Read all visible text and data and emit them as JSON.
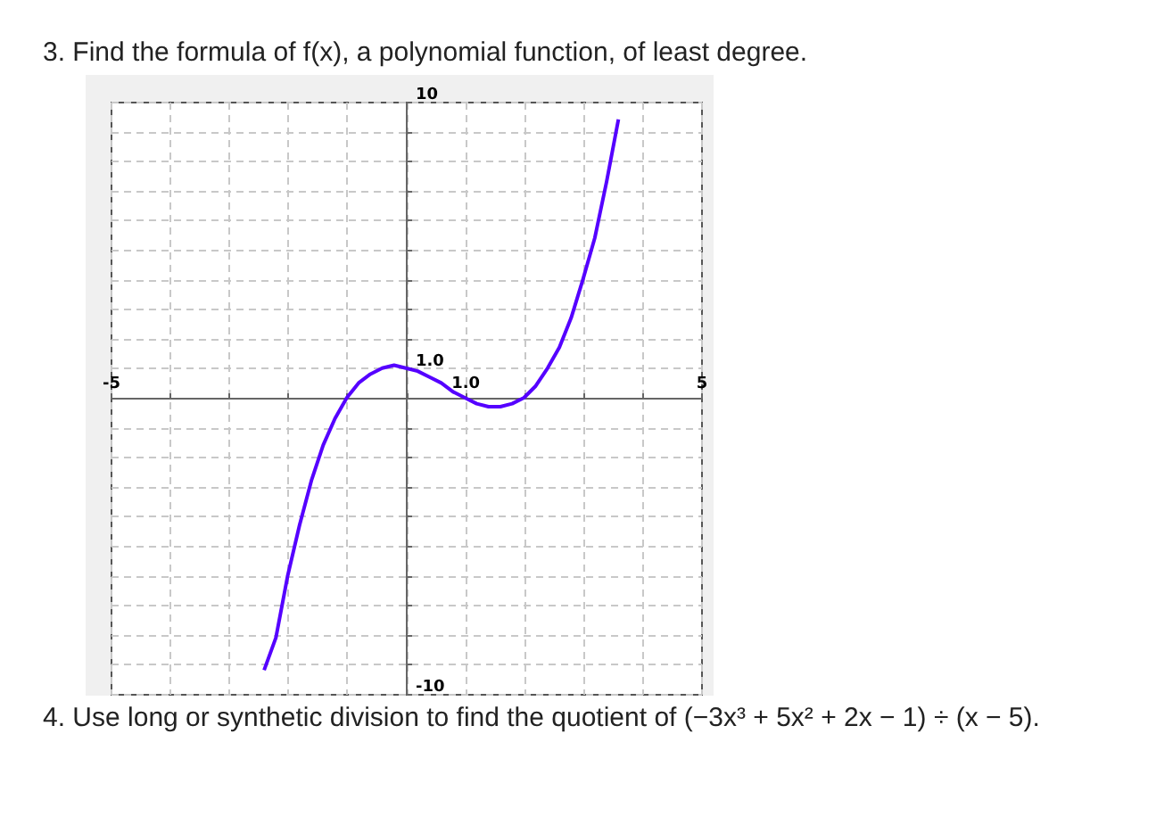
{
  "chart_data": {
    "type": "line",
    "title": "3. Find the formula of f(x), a polynomial function, of least degree.",
    "annotations": [
      "4. Use long or synthetic division to find the quotient of (−3x³ + 5x² + 2x − 1) ÷ (x − 5)."
    ],
    "xlim": [
      -5,
      5
    ],
    "ylim": [
      -10,
      10
    ],
    "xticks": [
      {
        "value": -5,
        "label": "-5"
      },
      {
        "value": -4,
        "label": null
      },
      {
        "value": -3,
        "label": null
      },
      {
        "value": -2,
        "label": null
      },
      {
        "value": -1,
        "label": null
      },
      {
        "value": 0,
        "label": null
      },
      {
        "value": 1,
        "label": "1.0"
      },
      {
        "value": 2,
        "label": null
      },
      {
        "value": 3,
        "label": null
      },
      {
        "value": 4,
        "label": null
      },
      {
        "value": 5,
        "label": "5"
      }
    ],
    "yticks": [
      {
        "value": -10,
        "label": "-10"
      },
      {
        "value": -9,
        "label": null
      },
      {
        "value": -8,
        "label": null
      },
      {
        "value": -7,
        "label": null
      },
      {
        "value": -6,
        "label": null
      },
      {
        "value": -5,
        "label": null
      },
      {
        "value": -4,
        "label": null
      },
      {
        "value": -3,
        "label": null
      },
      {
        "value": -2,
        "label": null
      },
      {
        "value": -1,
        "label": null
      },
      {
        "value": 0,
        "label": null
      },
      {
        "value": 1,
        "label": "1.0"
      },
      {
        "value": 2,
        "label": null
      },
      {
        "value": 3,
        "label": null
      },
      {
        "value": 4,
        "label": null
      },
      {
        "value": 5,
        "label": null
      },
      {
        "value": 6,
        "label": null
      },
      {
        "value": 7,
        "label": null
      },
      {
        "value": 8,
        "label": null
      },
      {
        "value": 9,
        "label": null
      },
      {
        "value": 10,
        "label": "10"
      }
    ],
    "grid": true,
    "x": [
      -2.4,
      -2.2,
      -2.0,
      -1.8,
      -1.6,
      -1.4,
      -1.2,
      -1.0,
      -0.8,
      -0.6,
      -0.4,
      -0.2,
      0,
      0.2,
      0.4,
      0.6,
      0.8,
      1.0,
      1.2,
      1.4,
      1.6,
      1.8,
      2.0,
      2.2,
      2.4,
      2.6,
      2.8,
      3.0,
      3.2,
      3.4,
      3.6
    ],
    "series": [
      {
        "color": "#5500ff",
        "values": [
          -9.2,
          -8.1,
          -6,
          -4.3,
          -2.8,
          -1.6,
          -0.7,
          0,
          0.5,
          0.8,
          1.0,
          1.1,
          1.0,
          0.9,
          0.7,
          0.5,
          0.2,
          0,
          -0.2,
          -0.3,
          -0.3,
          -0.2,
          0,
          0.4,
          1.0,
          1.7,
          2.7,
          4.0,
          5.4,
          7.3,
          9.4
        ]
      }
    ]
  }
}
